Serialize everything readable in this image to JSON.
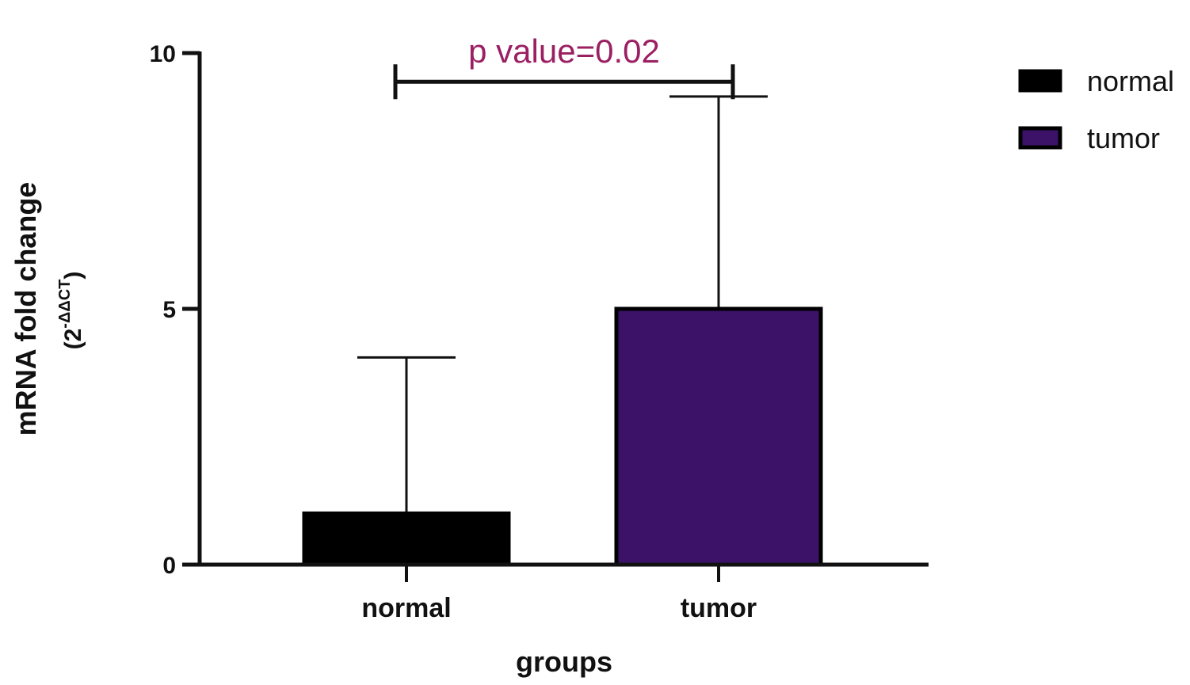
{
  "chart_data": {
    "type": "bar",
    "categories": [
      "normal",
      "tumor"
    ],
    "series": [
      {
        "name": "normal",
        "values": [
          1.0,
          null
        ],
        "error_upper": [
          4.05,
          null
        ],
        "color": "#000000"
      },
      {
        "name": "tumor",
        "values": [
          null,
          5.0
        ],
        "error_upper": [
          null,
          9.15
        ],
        "color": "#3b1268"
      }
    ],
    "xlabel": "groups",
    "ylabel": "mRNA fold change",
    "ylabel_sub": {
      "open": "(",
      "base": "2",
      "sup": "-ΔΔCT",
      "close": ")"
    },
    "ylim": [
      0,
      10
    ],
    "yticks": [
      {
        "value": 0,
        "label": "0"
      },
      {
        "value": 5,
        "label": "5"
      },
      {
        "value": 10,
        "label": "10"
      }
    ],
    "grid": false,
    "legend": {
      "position": "top-right",
      "entries": [
        {
          "label": "normal",
          "color": "#000000"
        },
        {
          "label": "tumor",
          "color": "#3b1268"
        }
      ]
    },
    "annotation": {
      "text": "p value=0.02",
      "color": "#9b1f63",
      "bracket_y": 9.5,
      "from_category": "normal",
      "to_category": "tumor"
    }
  }
}
